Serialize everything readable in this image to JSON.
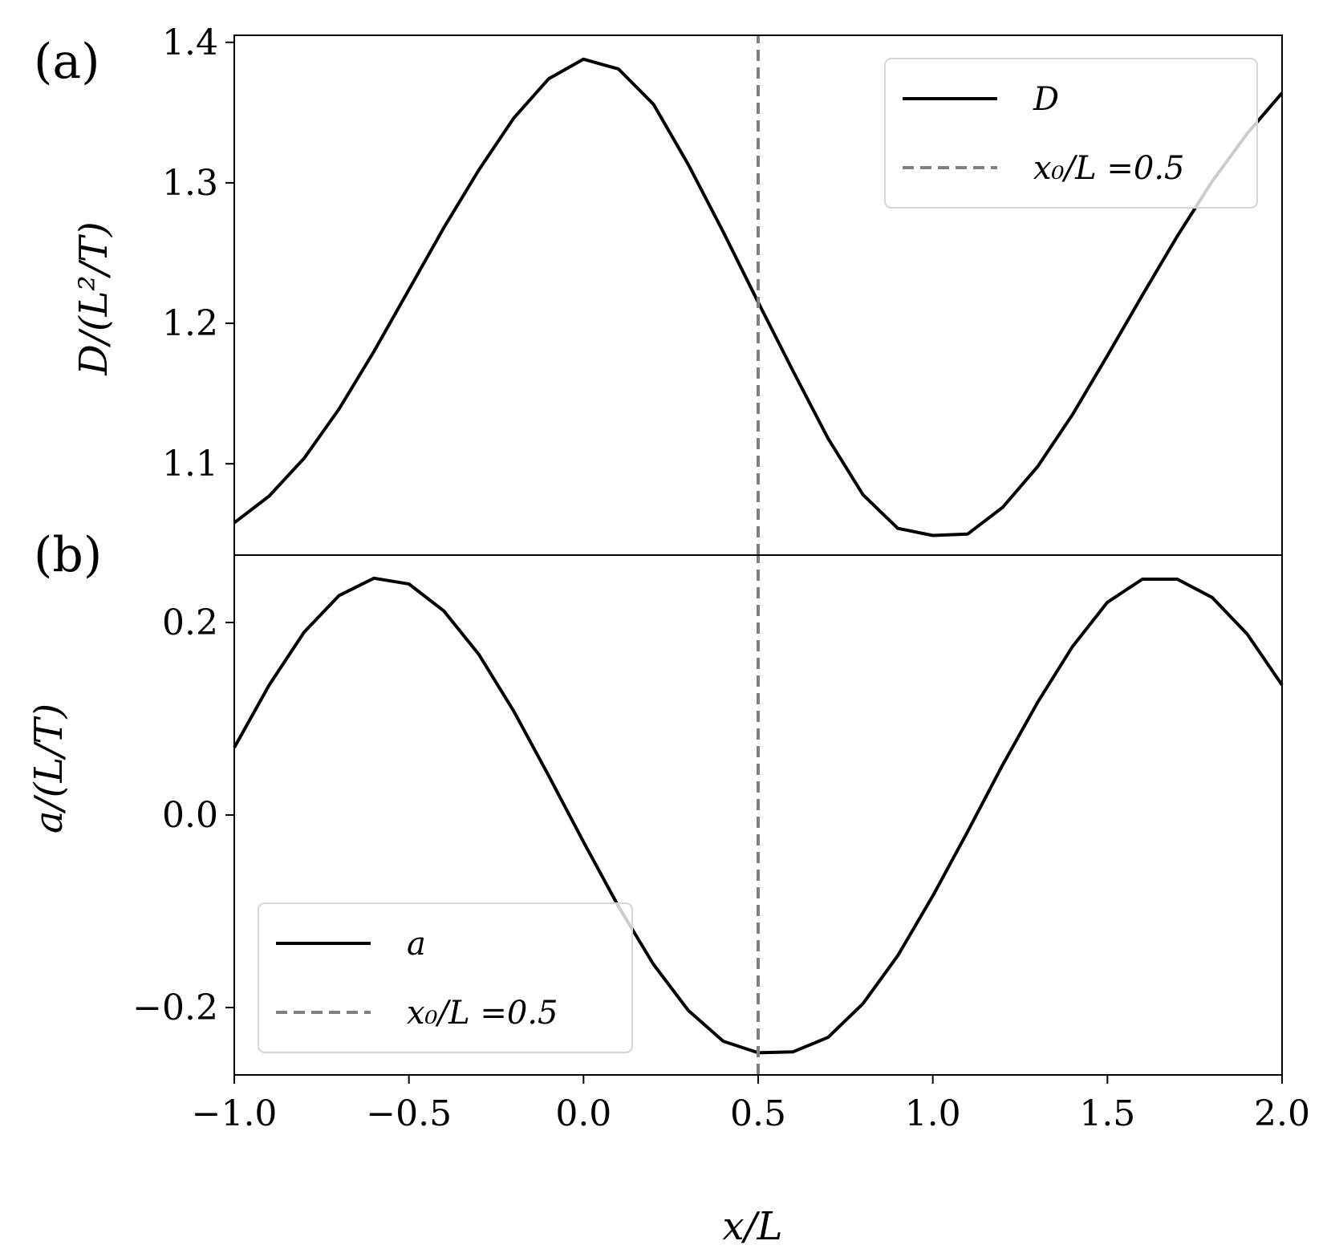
{
  "figure": {
    "panel_labels": [
      "(a)",
      "(b)"
    ],
    "xlabel": "x/L",
    "xtick_labels": [
      "−1.0",
      "−0.5",
      "0.0",
      "0.5",
      "1.0",
      "1.5",
      "2.0"
    ]
  },
  "chart_data": [
    {
      "type": "line",
      "panel": "(a)",
      "ylabel": "D/(L²/T)",
      "xlim": [
        -1.0,
        2.0
      ],
      "ylim": [
        1.035,
        1.405
      ],
      "yticks": [
        1.1,
        1.2,
        1.3,
        1.4
      ],
      "ytick_labels": [
        "1.1",
        "1.2",
        "1.3",
        "1.4"
      ],
      "grid": false,
      "legend": {
        "placement": "top-right",
        "entries": [
          {
            "label": "D",
            "style": "solid",
            "color": "#000000"
          },
          {
            "label": "x₀/L =0.5",
            "style": "dashed",
            "color": "#808080"
          }
        ]
      },
      "series": [
        {
          "name": "D",
          "style": "solid",
          "color": "#000000",
          "x": [
            -1.0,
            -0.9,
            -0.8,
            -0.7,
            -0.6,
            -0.5,
            -0.4,
            -0.3,
            -0.2,
            -0.1,
            0.0,
            0.1,
            0.2,
            0.3,
            0.4,
            0.5,
            0.6,
            0.7,
            0.8,
            0.9,
            1.0,
            1.1,
            1.2,
            1.3,
            1.4,
            1.5,
            1.6,
            1.7,
            1.8,
            1.9,
            2.0
          ],
          "y": [
            1.058,
            1.077,
            1.104,
            1.139,
            1.18,
            1.224,
            1.268,
            1.309,
            1.346,
            1.374,
            1.388,
            1.381,
            1.356,
            1.313,
            1.265,
            1.215,
            1.166,
            1.118,
            1.078,
            1.054,
            1.049,
            1.05,
            1.069,
            1.098,
            1.135,
            1.177,
            1.22,
            1.262,
            1.301,
            1.335,
            1.364
          ]
        },
        {
          "name": "x₀/L =0.5",
          "style": "dashed",
          "color": "#808080",
          "x": [
            0.5,
            0.5
          ],
          "y": [
            1.035,
            1.405
          ]
        }
      ]
    },
    {
      "type": "line",
      "panel": "(b)",
      "ylabel": "a/(L/T)",
      "xlim": [
        -1.0,
        2.0
      ],
      "ylim": [
        -0.27,
        0.27
      ],
      "yticks": [
        -0.2,
        0.0,
        0.2
      ],
      "ytick_labels": [
        "−0.2",
        "0.0",
        "0.2"
      ],
      "grid": false,
      "legend": {
        "placement": "bottom-left",
        "entries": [
          {
            "label": "a",
            "style": "solid",
            "color": "#000000"
          },
          {
            "label": "x₀/L =0.5",
            "style": "dashed",
            "color": "#808080"
          }
        ]
      },
      "series": [
        {
          "name": "a",
          "style": "solid",
          "color": "#000000",
          "x": [
            -1.0,
            -0.9,
            -0.8,
            -0.7,
            -0.6,
            -0.5,
            -0.4,
            -0.3,
            -0.2,
            -0.1,
            0.0,
            0.1,
            0.2,
            0.3,
            0.4,
            0.5,
            0.6,
            0.7,
            0.8,
            0.9,
            1.0,
            1.1,
            1.2,
            1.3,
            1.4,
            1.5,
            1.6,
            1.7,
            1.8,
            1.9,
            2.0
          ],
          "y": [
            0.07,
            0.135,
            0.19,
            0.228,
            0.246,
            0.24,
            0.212,
            0.167,
            0.108,
            0.041,
            -0.028,
            -0.095,
            -0.155,
            -0.203,
            -0.235,
            -0.247,
            -0.246,
            -0.231,
            -0.196,
            -0.146,
            -0.084,
            -0.017,
            0.052,
            0.117,
            0.175,
            0.221,
            0.245,
            0.245,
            0.226,
            0.188,
            0.135
          ]
        },
        {
          "name": "x₀/L =0.5",
          "style": "dashed",
          "color": "#808080",
          "x": [
            0.5,
            0.5
          ],
          "y": [
            -0.27,
            0.27
          ]
        }
      ]
    }
  ]
}
